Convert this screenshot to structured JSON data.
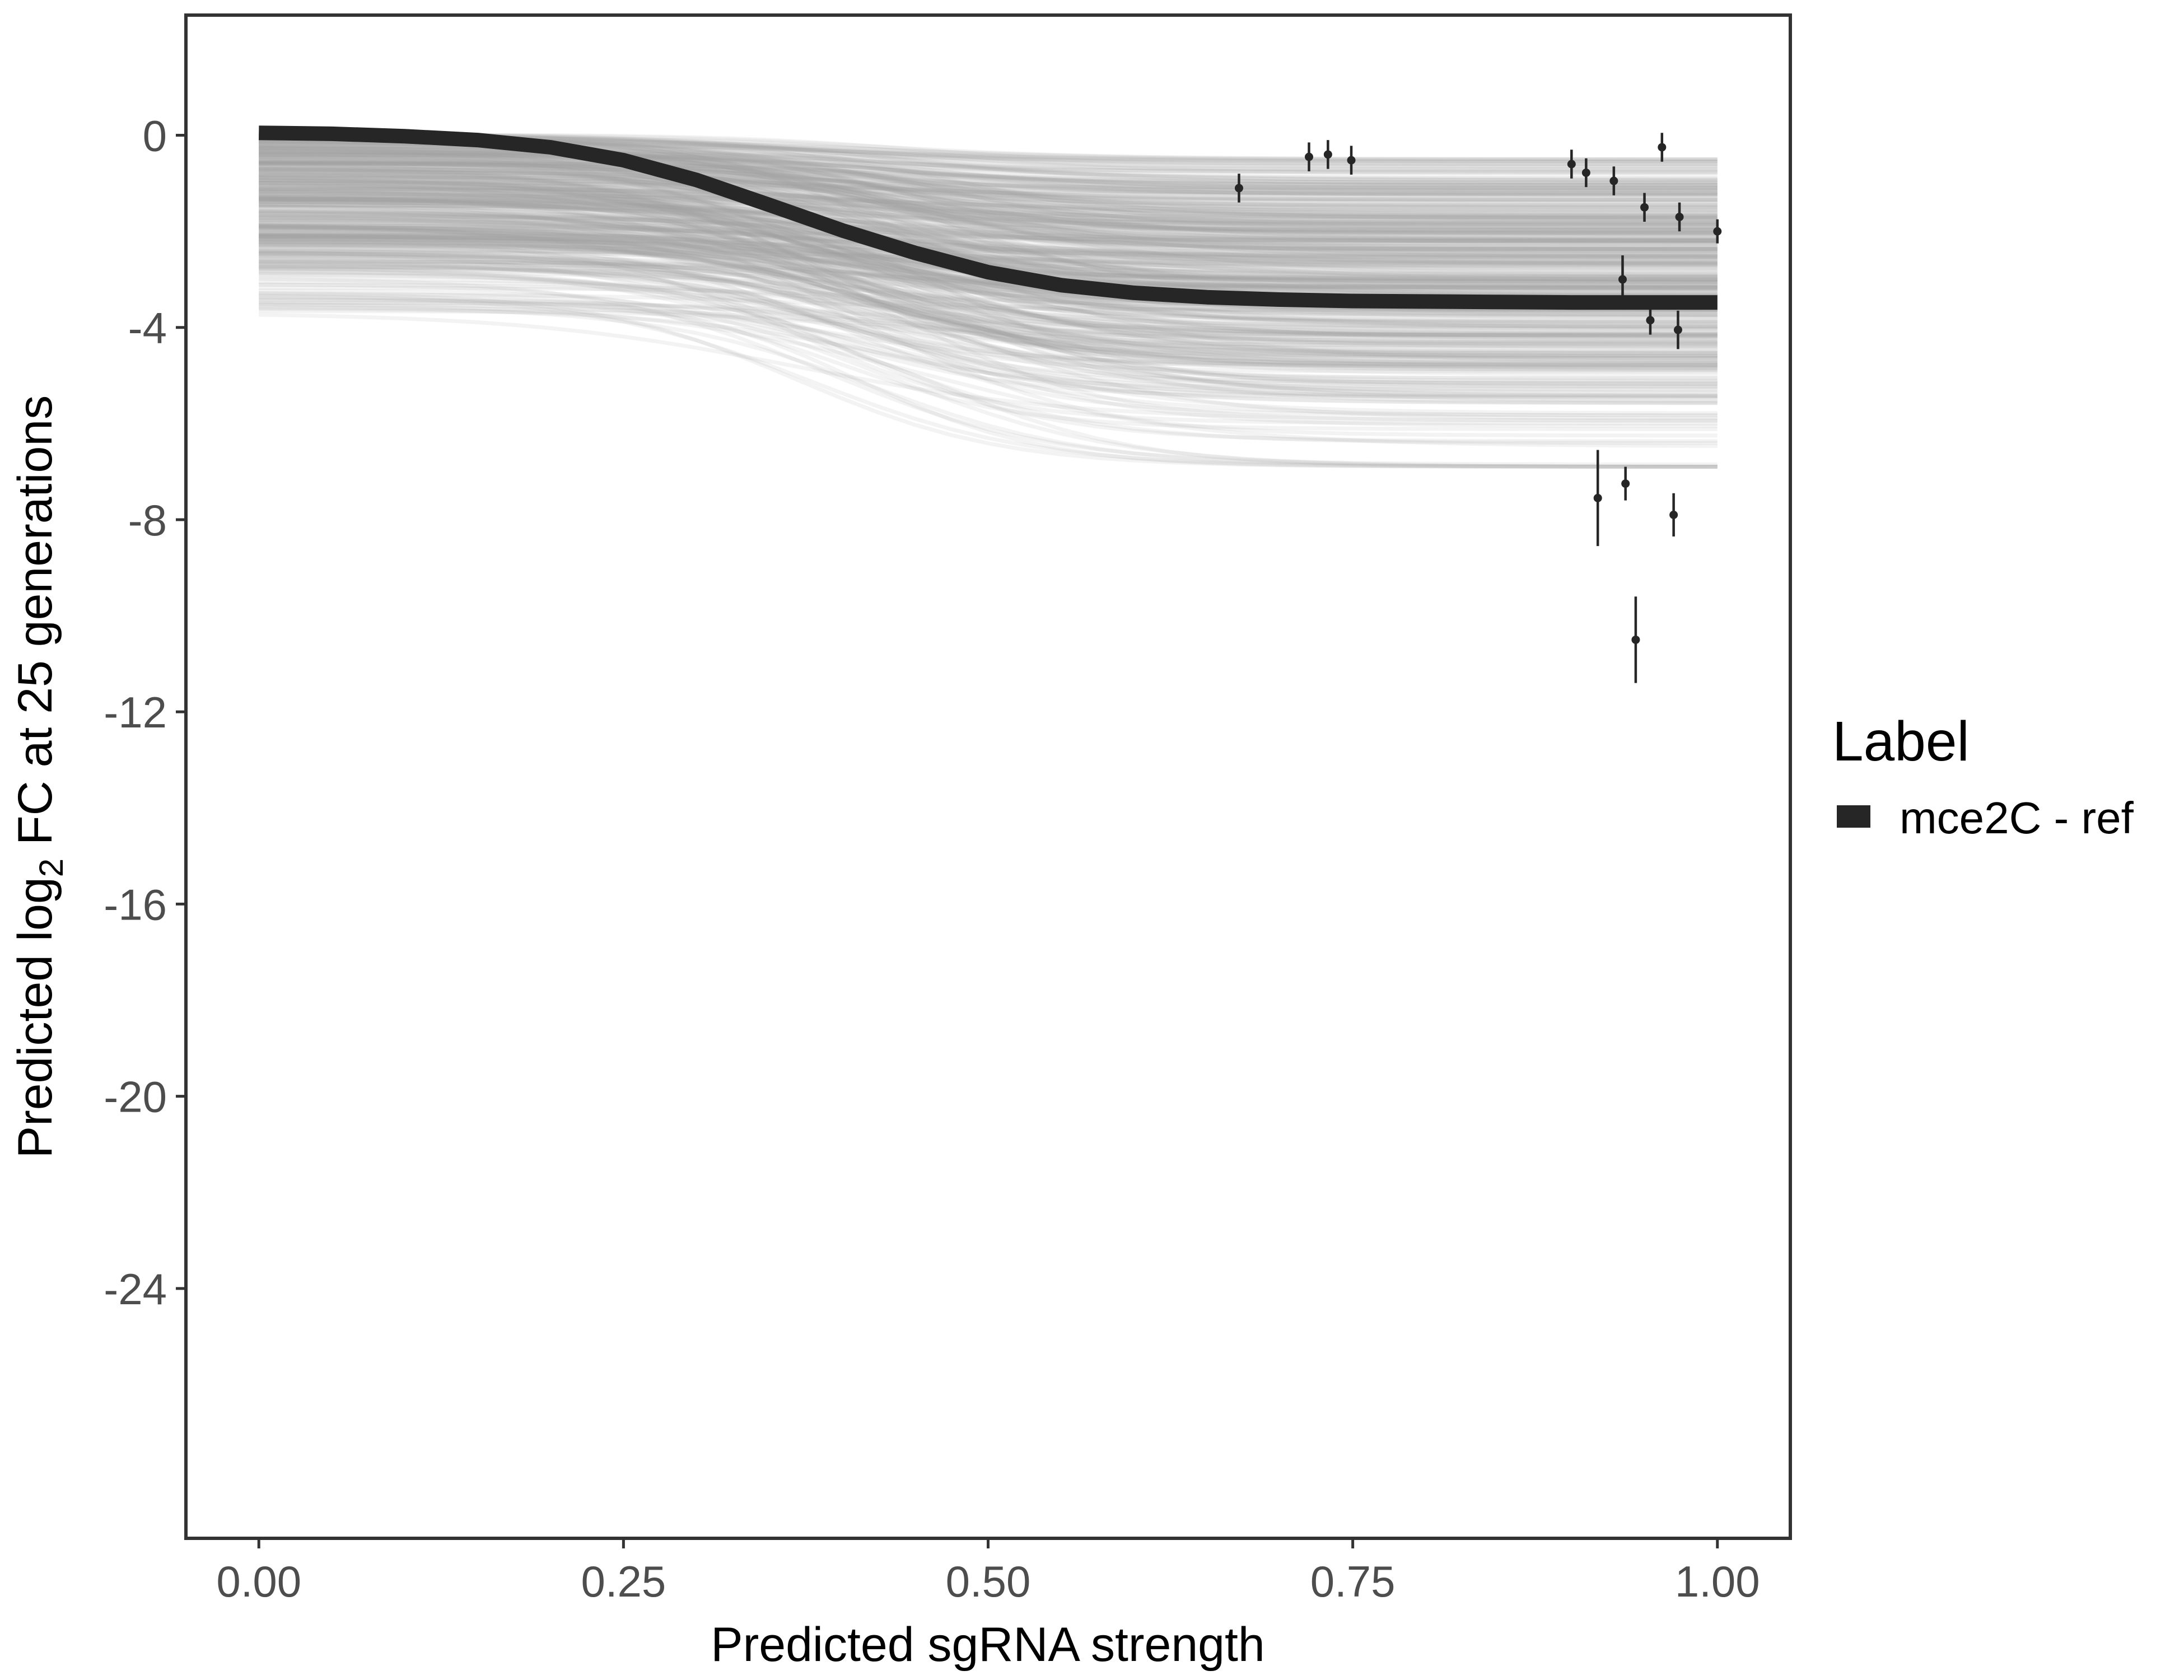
{
  "chart_data": {
    "type": "line",
    "title": "",
    "xlabel": "Predicted sgRNA strength",
    "ylabel": {
      "prefix": "Predicted  log",
      "subscript": "2",
      "suffix": " FC at 25 generations"
    },
    "xlim": [
      -0.05,
      1.05
    ],
    "ylim": [
      -29.2,
      2.5
    ],
    "x_ticks": [
      0.0,
      0.25,
      0.5,
      0.75,
      1.0
    ],
    "x_tick_labels": [
      "0.00",
      "0.25",
      "0.50",
      "0.75",
      "1.00"
    ],
    "y_ticks": [
      0,
      -4,
      -8,
      -12,
      -16,
      -20,
      -24
    ],
    "y_tick_labels": [
      "0",
      "-4",
      "-8",
      "-12",
      "-16",
      "-20",
      "-24"
    ],
    "grid": false,
    "legend": {
      "title": "Label",
      "placement": "right",
      "entries": [
        {
          "name": "mce2C - ref",
          "color": "#262626"
        }
      ]
    },
    "series": [
      {
        "name": "mce2C - ref",
        "kind": "fitted-curve",
        "color": "#262626",
        "x": [
          0.0,
          0.05,
          0.1,
          0.15,
          0.2,
          0.25,
          0.3,
          0.35,
          0.4,
          0.45,
          0.5,
          0.55,
          0.6,
          0.65,
          0.7,
          0.75,
          0.8,
          0.85,
          0.9,
          0.95,
          1.0
        ],
        "y": [
          0.05,
          0.03,
          -0.02,
          -0.1,
          -0.25,
          -0.52,
          -0.93,
          -1.45,
          -1.98,
          -2.45,
          -2.85,
          -3.12,
          -3.28,
          -3.37,
          -3.42,
          -3.45,
          -3.46,
          -3.47,
          -3.48,
          -3.48,
          -3.48
        ]
      }
    ],
    "posterior_band": {
      "kind": "posterior draws",
      "color": "#a6a6a6",
      "draw_count": 450,
      "start_range": [
        -3.95,
        0.05
      ],
      "end_range": [
        -6.9,
        -0.5
      ]
    },
    "observations": {
      "kind": "point with error bar",
      "color": "#262626",
      "points": [
        {
          "x": 0.672,
          "y": -1.1,
          "lo": -1.4,
          "hi": -0.8
        },
        {
          "x": 0.72,
          "y": -0.45,
          "lo": -0.75,
          "hi": -0.15
        },
        {
          "x": 0.733,
          "y": -0.4,
          "lo": -0.7,
          "hi": -0.1
        },
        {
          "x": 0.749,
          "y": -0.52,
          "lo": -0.82,
          "hi": -0.22
        },
        {
          "x": 0.9,
          "y": -0.6,
          "lo": -0.9,
          "hi": -0.3
        },
        {
          "x": 0.91,
          "y": -0.78,
          "lo": -1.08,
          "hi": -0.48
        },
        {
          "x": 0.929,
          "y": -0.95,
          "lo": -1.25,
          "hi": -0.65
        },
        {
          "x": 0.935,
          "y": -3.0,
          "lo": -3.5,
          "hi": -2.5
        },
        {
          "x": 0.95,
          "y": -1.5,
          "lo": -1.8,
          "hi": -1.2
        },
        {
          "x": 0.962,
          "y": -0.25,
          "lo": -0.55,
          "hi": 0.05
        },
        {
          "x": 0.974,
          "y": -1.7,
          "lo": -2.0,
          "hi": -1.4
        },
        {
          "x": 0.954,
          "y": -3.85,
          "lo": -4.15,
          "hi": -3.55
        },
        {
          "x": 0.973,
          "y": -4.05,
          "lo": -4.45,
          "hi": -3.65
        },
        {
          "x": 1.0,
          "y": -2.0,
          "lo": -2.25,
          "hi": -1.75
        },
        {
          "x": 0.918,
          "y": -7.55,
          "lo": -8.55,
          "hi": -6.55
        },
        {
          "x": 0.937,
          "y": -7.25,
          "lo": -7.6,
          "hi": -6.9
        },
        {
          "x": 0.97,
          "y": -7.9,
          "lo": -8.35,
          "hi": -7.45
        },
        {
          "x": 0.944,
          "y": -10.5,
          "lo": -11.4,
          "hi": -9.6
        }
      ]
    }
  }
}
